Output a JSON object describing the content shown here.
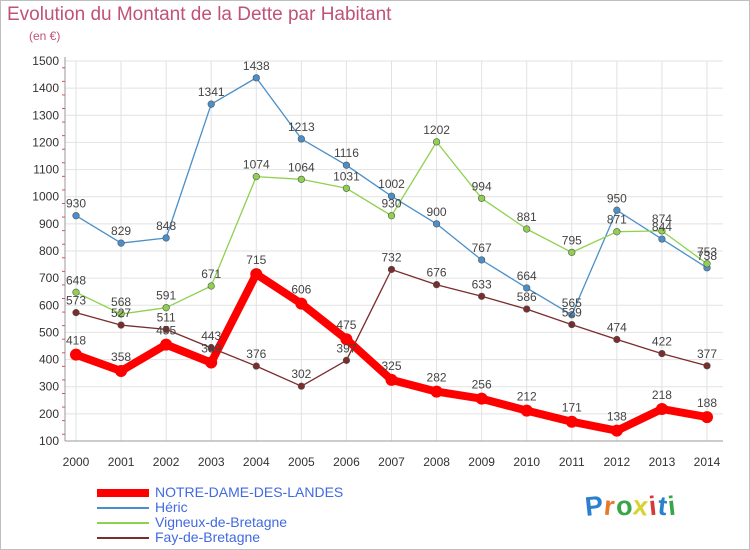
{
  "title": "Evolution du Montant de la Dette par Habitant",
  "unit_label": "(en €)",
  "logo_text": "Proxiti",
  "logo_colors": [
    "#2a7fcf",
    "#e8782a",
    "#3aa548",
    "#d9d233",
    "#d43a3a",
    "#2a7fcf",
    "#3aa548"
  ],
  "chart_data": {
    "type": "line",
    "title": "Evolution du Montant de la Dette par Habitant",
    "ylabel": "(en €)",
    "xlabel": "",
    "x": [
      "2000",
      "2001",
      "2002",
      "2003",
      "2004",
      "2005",
      "2006",
      "2007",
      "2008",
      "2009",
      "2010",
      "2011",
      "2012",
      "2013",
      "2014"
    ],
    "ylim": [
      100,
      1500
    ],
    "yticks": [
      "100",
      "200",
      "300",
      "400",
      "500",
      "600",
      "700",
      "800",
      "900",
      "1000",
      "1100",
      "1200",
      "1300",
      "1400",
      "1500"
    ],
    "grid": true,
    "legend_position": "bottom-left",
    "series": [
      {
        "name": "NOTRE-DAME-DES-LANDES",
        "color": "#ff0000",
        "highlight": true,
        "values": [
          418,
          358,
          455,
          389,
          715,
          606,
          475,
          325,
          282,
          256,
          212,
          171,
          138,
          218,
          188
        ]
      },
      {
        "name": "Héric",
        "color": "#4a8fc9",
        "highlight": false,
        "values": [
          930,
          829,
          848,
          1341,
          1438,
          1213,
          1116,
          1002,
          900,
          767,
          664,
          565,
          950,
          844,
          738
        ]
      },
      {
        "name": "Vigneux-de-Bretagne",
        "color": "#8fd14f",
        "highlight": false,
        "values": [
          648,
          568,
          591,
          671,
          1074,
          1064,
          1031,
          930,
          1202,
          994,
          881,
          795,
          871,
          874,
          753
        ]
      },
      {
        "name": "Fay-de-Bretagne",
        "color": "#7b2c2c",
        "highlight": false,
        "values": [
          573,
          527,
          511,
          443,
          376,
          302,
          397,
          732,
          676,
          633,
          586,
          529,
          474,
          422,
          377
        ]
      }
    ]
  }
}
